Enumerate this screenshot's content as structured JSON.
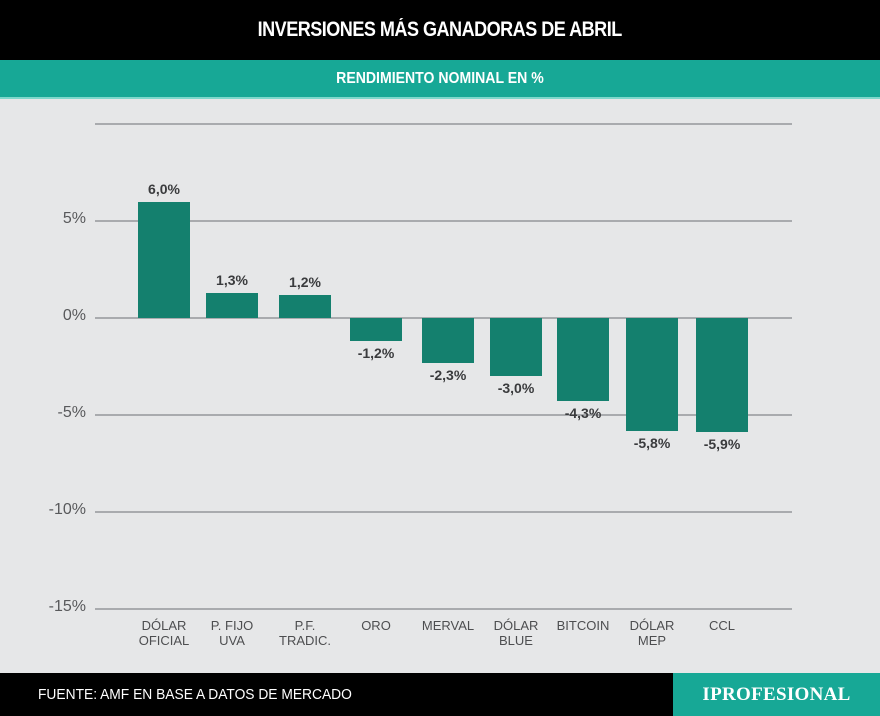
{
  "header": {
    "title": "INVERSIONES MÁS GANADORAS DE ABRIL"
  },
  "subheader": {
    "title": "RENDIMIENTO NOMINAL EN %"
  },
  "footer": {
    "source": "FUENTE: AMF EN BASE A DATOS DE MERCADO",
    "logo": "IPROFESIONAL"
  },
  "colors": {
    "bar": "#14806e",
    "accent": "#17a896",
    "background": "#e6e7e8",
    "header": "#000000"
  },
  "chart_data": {
    "type": "bar",
    "title": "INVERSIONES MÁS GANADORAS DE ABRIL",
    "subtitle": "RENDIMIENTO NOMINAL EN %",
    "xlabel": "",
    "ylabel": "",
    "ylim": [
      -15,
      10
    ],
    "grid": true,
    "legend": null,
    "yticks": [
      "5%",
      "0%",
      "-5%",
      "-10%",
      "-15%"
    ],
    "categories": [
      "DÓLAR OFICIAL",
      "P. FIJO UVA",
      "P.F. TRADIC.",
      "ORO",
      "MERVAL",
      "DÓLAR BLUE",
      "BITCOIN",
      "DÓLAR MEP",
      "CCL"
    ],
    "category_lines": [
      [
        "DÓLAR",
        "OFICIAL"
      ],
      [
        "P. FIJO",
        "UVA"
      ],
      [
        "P.F.",
        "TRADIC."
      ],
      [
        "ORO"
      ],
      [
        "MERVAL"
      ],
      [
        "DÓLAR",
        "BLUE"
      ],
      [
        "BITCOIN"
      ],
      [
        "DÓLAR",
        "MEP"
      ],
      [
        "CCL"
      ]
    ],
    "values": [
      6.0,
      1.3,
      1.2,
      -1.2,
      -2.3,
      -3.0,
      -4.3,
      -5.8,
      -5.9
    ],
    "value_labels": [
      "6,0%",
      "1,3%",
      "1,2%",
      "-1,2%",
      "-2,3%",
      "-3,0%",
      "-4,3%",
      "-5,8%",
      "-5,9%"
    ],
    "source": "FUENTE: AMF EN BASE A DATOS DE MERCADO"
  }
}
